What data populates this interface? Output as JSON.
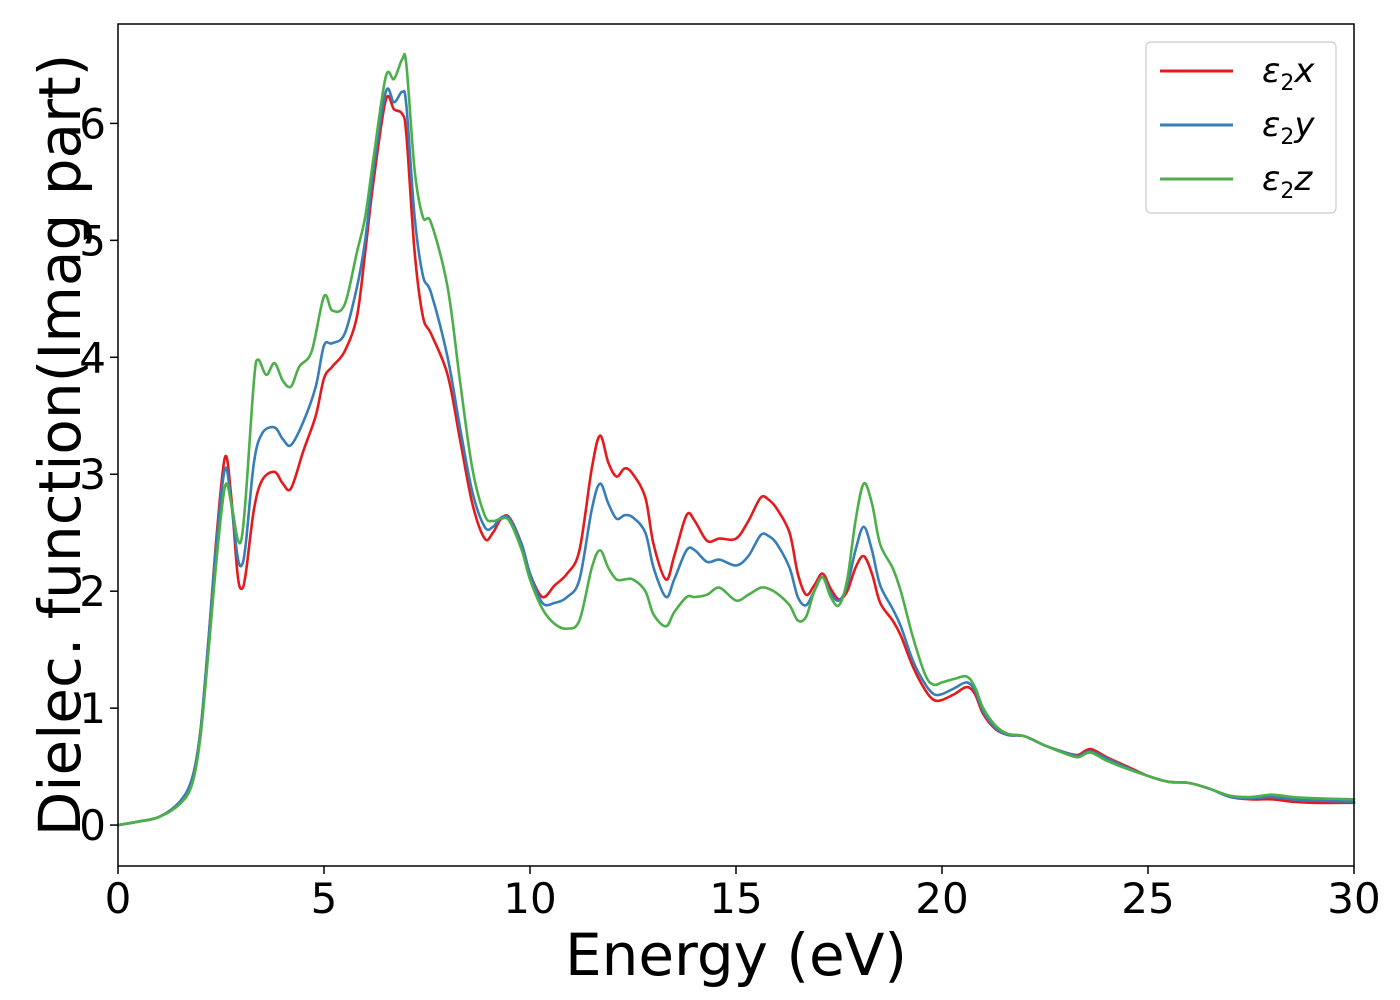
{
  "chart_data": {
    "type": "line",
    "title": "",
    "xlabel": "Energy (eV)",
    "ylabel": "Dielec. function(Imag part)",
    "xlim": [
      0,
      30
    ],
    "ylim": [
      -0.35,
      6.85
    ],
    "xticks": [
      0,
      5,
      10,
      15,
      20,
      25,
      30
    ],
    "yticks": [
      0,
      1,
      2,
      3,
      4,
      5,
      6
    ],
    "grid": false,
    "legend_position": "top-right",
    "series": [
      {
        "name": "ε2x",
        "legend_base": "ε",
        "legend_sub": "2",
        "legend_var": "x",
        "color": "#e41a1c",
        "points": [
          [
            0,
            0
          ],
          [
            0.5,
            0.03
          ],
          [
            1.0,
            0.07
          ],
          [
            1.5,
            0.2
          ],
          [
            1.8,
            0.4
          ],
          [
            2.0,
            0.8
          ],
          [
            2.2,
            1.6
          ],
          [
            2.4,
            2.5
          ],
          [
            2.6,
            3.15
          ],
          [
            2.75,
            2.8
          ],
          [
            2.9,
            2.15
          ],
          [
            3.0,
            2.02
          ],
          [
            3.1,
            2.15
          ],
          [
            3.3,
            2.7
          ],
          [
            3.5,
            2.95
          ],
          [
            3.8,
            3.02
          ],
          [
            4.0,
            2.92
          ],
          [
            4.2,
            2.88
          ],
          [
            4.5,
            3.2
          ],
          [
            4.8,
            3.5
          ],
          [
            5.0,
            3.82
          ],
          [
            5.2,
            3.92
          ],
          [
            5.5,
            4.05
          ],
          [
            5.8,
            4.35
          ],
          [
            6.0,
            4.9
          ],
          [
            6.2,
            5.5
          ],
          [
            6.5,
            6.2
          ],
          [
            6.7,
            6.12
          ],
          [
            6.9,
            6.08
          ],
          [
            7.0,
            5.9
          ],
          [
            7.2,
            4.9
          ],
          [
            7.4,
            4.35
          ],
          [
            7.6,
            4.2
          ],
          [
            8.0,
            3.85
          ],
          [
            8.3,
            3.3
          ],
          [
            8.6,
            2.75
          ],
          [
            8.9,
            2.45
          ],
          [
            9.1,
            2.5
          ],
          [
            9.3,
            2.62
          ],
          [
            9.5,
            2.63
          ],
          [
            9.8,
            2.4
          ],
          [
            10.0,
            2.15
          ],
          [
            10.3,
            1.95
          ],
          [
            10.6,
            2.05
          ],
          [
            10.9,
            2.15
          ],
          [
            11.2,
            2.35
          ],
          [
            11.5,
            3.05
          ],
          [
            11.7,
            3.33
          ],
          [
            11.9,
            3.1
          ],
          [
            12.1,
            2.98
          ],
          [
            12.3,
            3.05
          ],
          [
            12.5,
            3.0
          ],
          [
            12.8,
            2.8
          ],
          [
            13.0,
            2.4
          ],
          [
            13.3,
            2.1
          ],
          [
            13.5,
            2.3
          ],
          [
            13.8,
            2.65
          ],
          [
            14.0,
            2.6
          ],
          [
            14.3,
            2.43
          ],
          [
            14.6,
            2.45
          ],
          [
            15.0,
            2.45
          ],
          [
            15.3,
            2.6
          ],
          [
            15.6,
            2.8
          ],
          [
            15.8,
            2.78
          ],
          [
            16.0,
            2.7
          ],
          [
            16.3,
            2.5
          ],
          [
            16.5,
            2.15
          ],
          [
            16.7,
            1.97
          ],
          [
            16.9,
            2.05
          ],
          [
            17.1,
            2.15
          ],
          [
            17.3,
            2.02
          ],
          [
            17.5,
            1.93
          ],
          [
            17.7,
            2.0
          ],
          [
            17.9,
            2.2
          ],
          [
            18.1,
            2.3
          ],
          [
            18.3,
            2.15
          ],
          [
            18.5,
            1.9
          ],
          [
            18.8,
            1.75
          ],
          [
            19.0,
            1.62
          ],
          [
            19.3,
            1.35
          ],
          [
            19.6,
            1.15
          ],
          [
            19.8,
            1.07
          ],
          [
            20.0,
            1.07
          ],
          [
            20.3,
            1.12
          ],
          [
            20.6,
            1.18
          ],
          [
            20.8,
            1.12
          ],
          [
            21.0,
            0.95
          ],
          [
            21.3,
            0.82
          ],
          [
            21.6,
            0.77
          ],
          [
            22.0,
            0.76
          ],
          [
            22.5,
            0.68
          ],
          [
            23.0,
            0.62
          ],
          [
            23.3,
            0.6
          ],
          [
            23.6,
            0.65
          ],
          [
            24.0,
            0.58
          ],
          [
            24.5,
            0.5
          ],
          [
            25.0,
            0.42
          ],
          [
            25.5,
            0.37
          ],
          [
            26.0,
            0.36
          ],
          [
            26.5,
            0.31
          ],
          [
            27.0,
            0.24
          ],
          [
            27.5,
            0.22
          ],
          [
            28.0,
            0.22
          ],
          [
            28.5,
            0.2
          ],
          [
            29.0,
            0.19
          ],
          [
            30.0,
            0.19
          ]
        ]
      },
      {
        "name": "ε2y",
        "legend_base": "ε",
        "legend_sub": "2",
        "legend_var": "y",
        "color": "#377eb8",
        "points": [
          [
            0,
            0
          ],
          [
            0.5,
            0.03
          ],
          [
            1.0,
            0.07
          ],
          [
            1.5,
            0.2
          ],
          [
            1.8,
            0.4
          ],
          [
            2.0,
            0.8
          ],
          [
            2.2,
            1.6
          ],
          [
            2.4,
            2.45
          ],
          [
            2.6,
            3.05
          ],
          [
            2.75,
            2.75
          ],
          [
            2.9,
            2.3
          ],
          [
            3.0,
            2.22
          ],
          [
            3.1,
            2.4
          ],
          [
            3.3,
            3.1
          ],
          [
            3.5,
            3.35
          ],
          [
            3.8,
            3.4
          ],
          [
            4.0,
            3.3
          ],
          [
            4.2,
            3.25
          ],
          [
            4.5,
            3.45
          ],
          [
            4.8,
            3.75
          ],
          [
            5.0,
            4.1
          ],
          [
            5.2,
            4.12
          ],
          [
            5.5,
            4.2
          ],
          [
            5.8,
            4.6
          ],
          [
            6.0,
            5.0
          ],
          [
            6.2,
            5.6
          ],
          [
            6.5,
            6.27
          ],
          [
            6.7,
            6.18
          ],
          [
            6.9,
            6.27
          ],
          [
            7.0,
            6.15
          ],
          [
            7.2,
            5.2
          ],
          [
            7.4,
            4.7
          ],
          [
            7.6,
            4.55
          ],
          [
            8.0,
            4.0
          ],
          [
            8.3,
            3.4
          ],
          [
            8.6,
            2.85
          ],
          [
            8.9,
            2.55
          ],
          [
            9.1,
            2.55
          ],
          [
            9.3,
            2.63
          ],
          [
            9.5,
            2.62
          ],
          [
            9.8,
            2.4
          ],
          [
            10.0,
            2.15
          ],
          [
            10.3,
            1.9
          ],
          [
            10.6,
            1.9
          ],
          [
            10.9,
            1.95
          ],
          [
            11.2,
            2.1
          ],
          [
            11.5,
            2.7
          ],
          [
            11.7,
            2.92
          ],
          [
            11.9,
            2.75
          ],
          [
            12.1,
            2.62
          ],
          [
            12.3,
            2.65
          ],
          [
            12.5,
            2.63
          ],
          [
            12.8,
            2.5
          ],
          [
            13.0,
            2.2
          ],
          [
            13.3,
            1.95
          ],
          [
            13.5,
            2.1
          ],
          [
            13.8,
            2.35
          ],
          [
            14.0,
            2.35
          ],
          [
            14.3,
            2.25
          ],
          [
            14.6,
            2.27
          ],
          [
            15.0,
            2.22
          ],
          [
            15.3,
            2.3
          ],
          [
            15.6,
            2.48
          ],
          [
            15.8,
            2.47
          ],
          [
            16.0,
            2.4
          ],
          [
            16.3,
            2.2
          ],
          [
            16.5,
            1.95
          ],
          [
            16.7,
            1.88
          ],
          [
            16.9,
            2.0
          ],
          [
            17.1,
            2.12
          ],
          [
            17.3,
            1.98
          ],
          [
            17.5,
            1.92
          ],
          [
            17.7,
            2.05
          ],
          [
            17.9,
            2.35
          ],
          [
            18.1,
            2.55
          ],
          [
            18.3,
            2.35
          ],
          [
            18.5,
            2.05
          ],
          [
            18.8,
            1.85
          ],
          [
            19.0,
            1.7
          ],
          [
            19.3,
            1.4
          ],
          [
            19.6,
            1.2
          ],
          [
            19.8,
            1.12
          ],
          [
            20.0,
            1.12
          ],
          [
            20.3,
            1.17
          ],
          [
            20.6,
            1.22
          ],
          [
            20.8,
            1.15
          ],
          [
            21.0,
            0.97
          ],
          [
            21.3,
            0.83
          ],
          [
            21.6,
            0.77
          ],
          [
            22.0,
            0.76
          ],
          [
            22.5,
            0.68
          ],
          [
            23.0,
            0.62
          ],
          [
            23.3,
            0.59
          ],
          [
            23.6,
            0.63
          ],
          [
            24.0,
            0.57
          ],
          [
            24.5,
            0.49
          ],
          [
            25.0,
            0.42
          ],
          [
            25.5,
            0.37
          ],
          [
            26.0,
            0.36
          ],
          [
            26.5,
            0.31
          ],
          [
            27.0,
            0.24
          ],
          [
            27.5,
            0.23
          ],
          [
            28.0,
            0.24
          ],
          [
            28.5,
            0.22
          ],
          [
            29.0,
            0.21
          ],
          [
            30.0,
            0.2
          ]
        ]
      },
      {
        "name": "ε2z",
        "legend_base": "ε",
        "legend_sub": "2",
        "legend_var": "z",
        "color": "#4daf4a",
        "points": [
          [
            0,
            0
          ],
          [
            0.5,
            0.03
          ],
          [
            1.0,
            0.07
          ],
          [
            1.5,
            0.18
          ],
          [
            1.8,
            0.35
          ],
          [
            2.0,
            0.75
          ],
          [
            2.2,
            1.5
          ],
          [
            2.4,
            2.3
          ],
          [
            2.6,
            2.9
          ],
          [
            2.75,
            2.75
          ],
          [
            2.9,
            2.45
          ],
          [
            3.0,
            2.45
          ],
          [
            3.1,
            2.8
          ],
          [
            3.3,
            3.8
          ],
          [
            3.4,
            3.98
          ],
          [
            3.6,
            3.85
          ],
          [
            3.8,
            3.95
          ],
          [
            4.0,
            3.8
          ],
          [
            4.2,
            3.75
          ],
          [
            4.4,
            3.92
          ],
          [
            4.7,
            4.05
          ],
          [
            5.0,
            4.52
          ],
          [
            5.2,
            4.4
          ],
          [
            5.5,
            4.45
          ],
          [
            5.8,
            4.9
          ],
          [
            6.0,
            5.2
          ],
          [
            6.2,
            5.7
          ],
          [
            6.5,
            6.4
          ],
          [
            6.7,
            6.38
          ],
          [
            6.9,
            6.55
          ],
          [
            7.0,
            6.5
          ],
          [
            7.2,
            5.6
          ],
          [
            7.4,
            5.2
          ],
          [
            7.6,
            5.15
          ],
          [
            8.0,
            4.6
          ],
          [
            8.3,
            3.8
          ],
          [
            8.6,
            3.05
          ],
          [
            8.9,
            2.65
          ],
          [
            9.1,
            2.6
          ],
          [
            9.3,
            2.62
          ],
          [
            9.5,
            2.6
          ],
          [
            9.8,
            2.35
          ],
          [
            10.0,
            2.1
          ],
          [
            10.3,
            1.85
          ],
          [
            10.6,
            1.72
          ],
          [
            10.9,
            1.68
          ],
          [
            11.2,
            1.75
          ],
          [
            11.5,
            2.2
          ],
          [
            11.7,
            2.35
          ],
          [
            11.9,
            2.2
          ],
          [
            12.1,
            2.1
          ],
          [
            12.3,
            2.1
          ],
          [
            12.5,
            2.1
          ],
          [
            12.8,
            2.0
          ],
          [
            13.0,
            1.8
          ],
          [
            13.3,
            1.7
          ],
          [
            13.5,
            1.82
          ],
          [
            13.8,
            1.95
          ],
          [
            14.0,
            1.95
          ],
          [
            14.3,
            1.97
          ],
          [
            14.6,
            2.03
          ],
          [
            15.0,
            1.92
          ],
          [
            15.3,
            1.97
          ],
          [
            15.6,
            2.03
          ],
          [
            15.8,
            2.02
          ],
          [
            16.0,
            1.98
          ],
          [
            16.3,
            1.88
          ],
          [
            16.5,
            1.75
          ],
          [
            16.7,
            1.78
          ],
          [
            16.9,
            2.0
          ],
          [
            17.1,
            2.12
          ],
          [
            17.3,
            1.95
          ],
          [
            17.5,
            1.88
          ],
          [
            17.7,
            2.1
          ],
          [
            17.9,
            2.6
          ],
          [
            18.1,
            2.92
          ],
          [
            18.3,
            2.75
          ],
          [
            18.5,
            2.4
          ],
          [
            18.8,
            2.2
          ],
          [
            19.0,
            2.0
          ],
          [
            19.3,
            1.6
          ],
          [
            19.6,
            1.28
          ],
          [
            19.8,
            1.2
          ],
          [
            20.0,
            1.22
          ],
          [
            20.3,
            1.25
          ],
          [
            20.6,
            1.27
          ],
          [
            20.8,
            1.18
          ],
          [
            21.0,
            1.0
          ],
          [
            21.3,
            0.85
          ],
          [
            21.6,
            0.78
          ],
          [
            22.0,
            0.76
          ],
          [
            22.5,
            0.68
          ],
          [
            23.0,
            0.61
          ],
          [
            23.3,
            0.58
          ],
          [
            23.6,
            0.62
          ],
          [
            24.0,
            0.55
          ],
          [
            24.5,
            0.48
          ],
          [
            25.0,
            0.42
          ],
          [
            25.5,
            0.37
          ],
          [
            26.0,
            0.36
          ],
          [
            26.5,
            0.31
          ],
          [
            27.0,
            0.25
          ],
          [
            27.5,
            0.24
          ],
          [
            28.0,
            0.26
          ],
          [
            28.5,
            0.24
          ],
          [
            29.0,
            0.23
          ],
          [
            30.0,
            0.22
          ]
        ]
      }
    ]
  }
}
